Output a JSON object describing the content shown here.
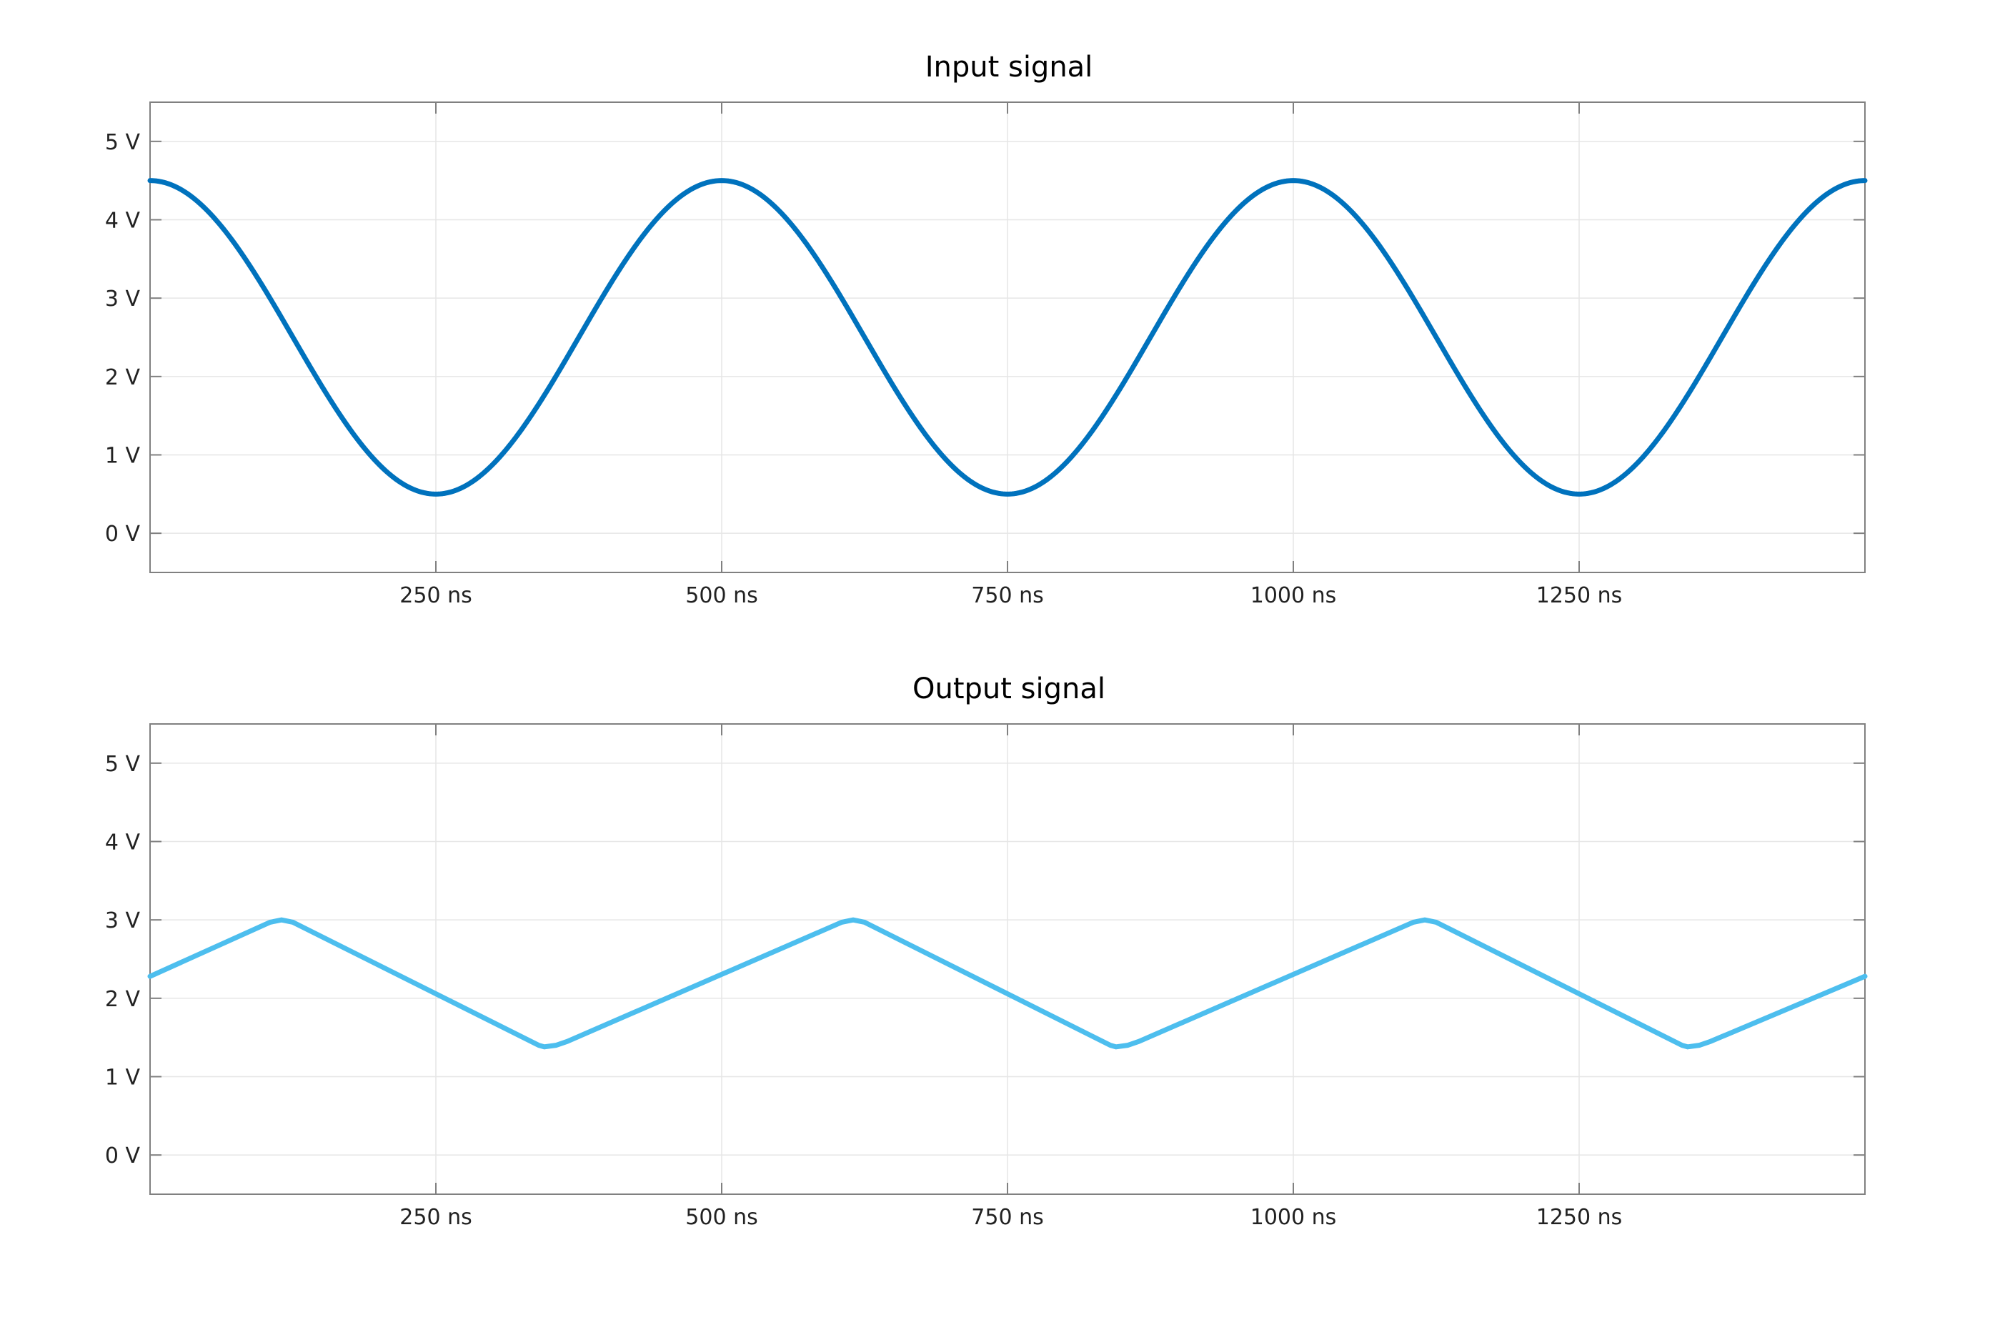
{
  "chart_data": [
    {
      "type": "line",
      "title": "Input signal",
      "xlabel": "",
      "ylabel": "",
      "xlim": [
        0,
        1500
      ],
      "ylim": [
        -0.5,
        5.5
      ],
      "x_unit": "ns",
      "y_unit": "V",
      "x_ticks": [
        250,
        500,
        750,
        1000,
        1250
      ],
      "x_tick_labels": [
        "250 ns",
        "500 ns",
        "750 ns",
        "1000 ns",
        "1250 ns"
      ],
      "y_ticks": [
        0,
        1,
        2,
        3,
        4,
        5
      ],
      "y_tick_labels": [
        "0 V",
        "1 V",
        "2 V",
        "3 V",
        "4 V",
        "5 V"
      ],
      "grid": true,
      "series": [
        {
          "color": "#0072bd",
          "x": [
            0,
            62.5,
            125,
            187.5,
            250,
            312.5,
            375,
            437.5,
            500,
            562.5,
            625,
            687.5,
            750,
            812.5,
            875,
            937.5,
            1000,
            1062.5,
            1125,
            1187.5,
            1250,
            1312.5,
            1375,
            1437.5,
            1500
          ],
          "y": [
            4.5,
            4.1,
            2.98,
            1.6,
            0.5,
            1.6,
            2.98,
            4.1,
            4.5,
            4.1,
            2.98,
            1.6,
            0.5,
            1.6,
            2.98,
            4.1,
            4.5,
            4.1,
            2.98,
            1.6,
            0.5,
            1.6,
            2.98,
            4.1,
            4.5
          ]
        }
      ]
    },
    {
      "type": "line",
      "title": "Output signal",
      "xlabel": "",
      "ylabel": "",
      "xlim": [
        0,
        1500
      ],
      "ylim": [
        -0.5,
        5.5
      ],
      "x_unit": "ns",
      "y_unit": "V",
      "x_ticks": [
        250,
        500,
        750,
        1000,
        1250
      ],
      "x_tick_labels": [
        "250 ns",
        "500 ns",
        "750 ns",
        "1000 ns",
        "1250 ns"
      ],
      "y_ticks": [
        0,
        1,
        2,
        3,
        4,
        5
      ],
      "y_tick_labels": [
        "0 V",
        "1 V",
        "2 V",
        "3 V",
        "4 V",
        "5 V"
      ],
      "grid": true,
      "series": [
        {
          "color": "#4dbeee",
          "x": [
            0,
            105,
            115,
            125,
            340,
            345,
            355,
            365,
            605,
            615,
            625,
            840,
            845,
            855,
            865,
            1105,
            1115,
            1125,
            1340,
            1345,
            1355,
            1365,
            1500
          ],
          "y": [
            2.28,
            2.97,
            3.0,
            2.97,
            1.4,
            1.38,
            1.4,
            1.45,
            2.97,
            3.0,
            2.97,
            1.4,
            1.38,
            1.4,
            1.45,
            2.97,
            3.0,
            2.97,
            1.4,
            1.38,
            1.4,
            1.45,
            2.28
          ]
        }
      ]
    }
  ]
}
